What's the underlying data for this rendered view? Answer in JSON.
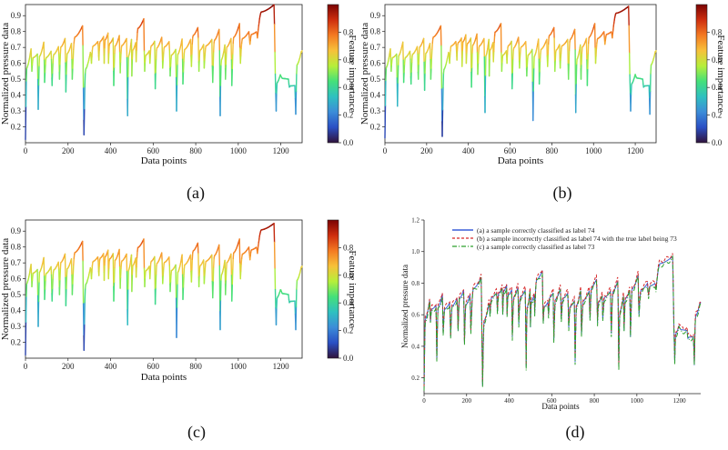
{
  "colors": {
    "cmap": [
      "#30123b",
      "#2a4fc4",
      "#3c8cd8",
      "#2fc0c0",
      "#44e07a",
      "#b6ef3a",
      "#f7c13a",
      "#f47a22",
      "#ce2e0e",
      "#7a0403"
    ],
    "series_a": "#3a5fd8",
    "series_b": "#d62728",
    "series_c": "#2ca02c",
    "axis": "#222222"
  },
  "chart_data": [
    {
      "panel": "a",
      "type": "line",
      "panel_label": "(a)",
      "xlabel": "Data points",
      "ylabel": "Normalized pressure data",
      "colorbar_label": "Feature importance",
      "xlim": [
        0,
        1300
      ],
      "ylim": [
        0.1,
        0.97
      ],
      "xticks": [
        0,
        200,
        400,
        600,
        800,
        1000,
        1200
      ],
      "yticks": [
        0.2,
        0.3,
        0.4,
        0.5,
        0.6,
        0.7,
        0.8,
        0.9
      ],
      "colorbar_range": [
        0,
        1
      ],
      "colorbar_ticks": [
        0.0,
        0.2,
        0.4,
        0.6,
        0.8
      ],
      "cycles": [
        [
          0,
          0.12,
          0.7
        ],
        [
          30,
          0.55,
          0.66
        ],
        [
          60,
          0.31,
          0.74
        ],
        [
          90,
          0.48,
          0.68
        ],
        [
          125,
          0.46,
          0.71
        ],
        [
          160,
          0.5,
          0.76
        ],
        [
          190,
          0.42,
          0.73
        ],
        [
          220,
          0.5,
          0.84
        ],
        [
          275,
          0.15,
          0.68
        ],
        [
          310,
          0.6,
          0.74
        ],
        [
          345,
          0.62,
          0.77
        ],
        [
          370,
          0.6,
          0.79
        ],
        [
          390,
          0.6,
          0.76
        ],
        [
          415,
          0.46,
          0.78
        ],
        [
          445,
          0.54,
          0.76
        ],
        [
          480,
          0.27,
          0.75
        ],
        [
          500,
          0.52,
          0.73
        ],
        [
          520,
          0.61,
          0.88
        ],
        [
          560,
          0.55,
          0.68
        ],
        [
          585,
          0.6,
          0.74
        ],
        [
          610,
          0.44,
          0.77
        ],
        [
          645,
          0.57,
          0.74
        ],
        [
          680,
          0.52,
          0.69
        ],
        [
          710,
          0.3,
          0.76
        ],
        [
          740,
          0.47,
          0.75
        ],
        [
          780,
          0.58,
          0.83
        ],
        [
          815,
          0.55,
          0.72
        ],
        [
          840,
          0.57,
          0.75
        ],
        [
          880,
          0.48,
          0.82
        ],
        [
          915,
          0.27,
          0.72
        ],
        [
          940,
          0.5,
          0.76
        ],
        [
          970,
          0.46,
          0.85
        ],
        [
          1010,
          0.6,
          0.8
        ],
        [
          1055,
          0.72,
          0.8
        ],
        [
          1090,
          0.76,
          0.97
        ],
        [
          1178,
          0.3,
          0.53
        ],
        [
          1200,
          0.52,
          0.5
        ],
        [
          1240,
          0.45,
          0.46
        ],
        [
          1270,
          0.28,
          0.68
        ]
      ]
    },
    {
      "panel": "b",
      "type": "line",
      "panel_label": "(b)",
      "xlabel": "Data points",
      "ylabel": "Normalized pressure data",
      "colorbar_label": "Feature importance",
      "xlim": [
        0,
        1300
      ],
      "ylim": [
        0.1,
        0.97
      ],
      "xticks": [
        0,
        200,
        400,
        600,
        800,
        1000,
        1200
      ],
      "yticks": [
        0.2,
        0.3,
        0.4,
        0.5,
        0.6,
        0.7,
        0.8,
        0.9
      ],
      "colorbar_range": [
        0,
        1
      ],
      "colorbar_ticks": [
        0.0,
        0.2,
        0.4,
        0.6,
        0.8
      ],
      "cycles": [
        [
          0,
          0.13,
          0.7
        ],
        [
          30,
          0.55,
          0.66
        ],
        [
          60,
          0.33,
          0.74
        ],
        [
          90,
          0.48,
          0.68
        ],
        [
          125,
          0.47,
          0.71
        ],
        [
          160,
          0.5,
          0.76
        ],
        [
          190,
          0.43,
          0.73
        ],
        [
          220,
          0.5,
          0.84
        ],
        [
          275,
          0.14,
          0.68
        ],
        [
          310,
          0.6,
          0.74
        ],
        [
          345,
          0.62,
          0.76
        ],
        [
          370,
          0.58,
          0.78
        ],
        [
          390,
          0.6,
          0.76
        ],
        [
          415,
          0.45,
          0.79
        ],
        [
          445,
          0.53,
          0.76
        ],
        [
          480,
          0.29,
          0.75
        ],
        [
          500,
          0.52,
          0.73
        ],
        [
          520,
          0.61,
          0.85
        ],
        [
          560,
          0.55,
          0.68
        ],
        [
          585,
          0.6,
          0.74
        ],
        [
          610,
          0.44,
          0.77
        ],
        [
          645,
          0.57,
          0.74
        ],
        [
          680,
          0.52,
          0.69
        ],
        [
          710,
          0.24,
          0.76
        ],
        [
          740,
          0.47,
          0.75
        ],
        [
          780,
          0.58,
          0.83
        ],
        [
          815,
          0.55,
          0.72
        ],
        [
          840,
          0.57,
          0.75
        ],
        [
          880,
          0.5,
          0.82
        ],
        [
          915,
          0.29,
          0.72
        ],
        [
          940,
          0.5,
          0.76
        ],
        [
          970,
          0.46,
          0.85
        ],
        [
          1010,
          0.6,
          0.8
        ],
        [
          1055,
          0.72,
          0.8
        ],
        [
          1090,
          0.76,
          0.96
        ],
        [
          1178,
          0.3,
          0.52
        ],
        [
          1200,
          0.53,
          0.5
        ],
        [
          1240,
          0.45,
          0.46
        ],
        [
          1270,
          0.28,
          0.68
        ]
      ]
    },
    {
      "panel": "c",
      "type": "line",
      "panel_label": "(c)",
      "xlabel": "Data points",
      "ylabel": "Normalized pressure data",
      "colorbar_label": "Feature importance",
      "xlim": [
        0,
        1300
      ],
      "ylim": [
        0.1,
        0.97
      ],
      "xticks": [
        0,
        200,
        400,
        600,
        800,
        1000,
        1200
      ],
      "yticks": [
        0.2,
        0.3,
        0.4,
        0.5,
        0.6,
        0.7,
        0.8,
        0.9
      ],
      "colorbar_range": [
        0,
        1
      ],
      "colorbar_ticks": [
        0.0,
        0.2,
        0.4,
        0.6,
        0.8
      ],
      "cycles": [
        [
          0,
          0.12,
          0.7
        ],
        [
          30,
          0.55,
          0.66
        ],
        [
          60,
          0.3,
          0.74
        ],
        [
          90,
          0.47,
          0.68
        ],
        [
          125,
          0.46,
          0.71
        ],
        [
          160,
          0.5,
          0.76
        ],
        [
          190,
          0.43,
          0.73
        ],
        [
          220,
          0.5,
          0.84
        ],
        [
          275,
          0.15,
          0.68
        ],
        [
          310,
          0.6,
          0.74
        ],
        [
          345,
          0.62,
          0.76
        ],
        [
          370,
          0.59,
          0.78
        ],
        [
          390,
          0.6,
          0.76
        ],
        [
          415,
          0.46,
          0.79
        ],
        [
          445,
          0.54,
          0.76
        ],
        [
          480,
          0.31,
          0.75
        ],
        [
          500,
          0.52,
          0.73
        ],
        [
          520,
          0.61,
          0.85
        ],
        [
          560,
          0.55,
          0.68
        ],
        [
          585,
          0.6,
          0.74
        ],
        [
          610,
          0.44,
          0.77
        ],
        [
          645,
          0.57,
          0.74
        ],
        [
          680,
          0.52,
          0.69
        ],
        [
          710,
          0.23,
          0.76
        ],
        [
          740,
          0.47,
          0.75
        ],
        [
          780,
          0.58,
          0.83
        ],
        [
          815,
          0.55,
          0.72
        ],
        [
          840,
          0.57,
          0.75
        ],
        [
          880,
          0.48,
          0.82
        ],
        [
          915,
          0.28,
          0.72
        ],
        [
          940,
          0.5,
          0.76
        ],
        [
          970,
          0.46,
          0.85
        ],
        [
          1010,
          0.6,
          0.8
        ],
        [
          1055,
          0.72,
          0.8
        ],
        [
          1090,
          0.76,
          0.95
        ],
        [
          1178,
          0.31,
          0.53
        ],
        [
          1200,
          0.53,
          0.5
        ],
        [
          1240,
          0.45,
          0.46
        ],
        [
          1270,
          0.28,
          0.68
        ]
      ]
    },
    {
      "panel": "d",
      "type": "line",
      "panel_label": "(d)",
      "xlabel": "Data points",
      "ylabel": "Normalized pressure data",
      "xlim": [
        0,
        1300
      ],
      "ylim": [
        0.1,
        1.2
      ],
      "xticks": [
        0,
        200,
        400,
        600,
        800,
        1000,
        1200
      ],
      "yticks": [
        0.2,
        0.4,
        0.6,
        0.8,
        1.0,
        1.2
      ],
      "legend_position": "top-center",
      "series": [
        {
          "name": "(a) a sample correctly classified as label 74",
          "style": "solid",
          "offset": 0.0
        },
        {
          "name": "(b) a sample incorrectly classified as label 74 with the true label being 73",
          "style": "dashed",
          "offset": 0.015
        },
        {
          "name": "(c) a sample correctly classified as label 73",
          "style": "dashdot",
          "offset": -0.012
        }
      ]
    }
  ]
}
